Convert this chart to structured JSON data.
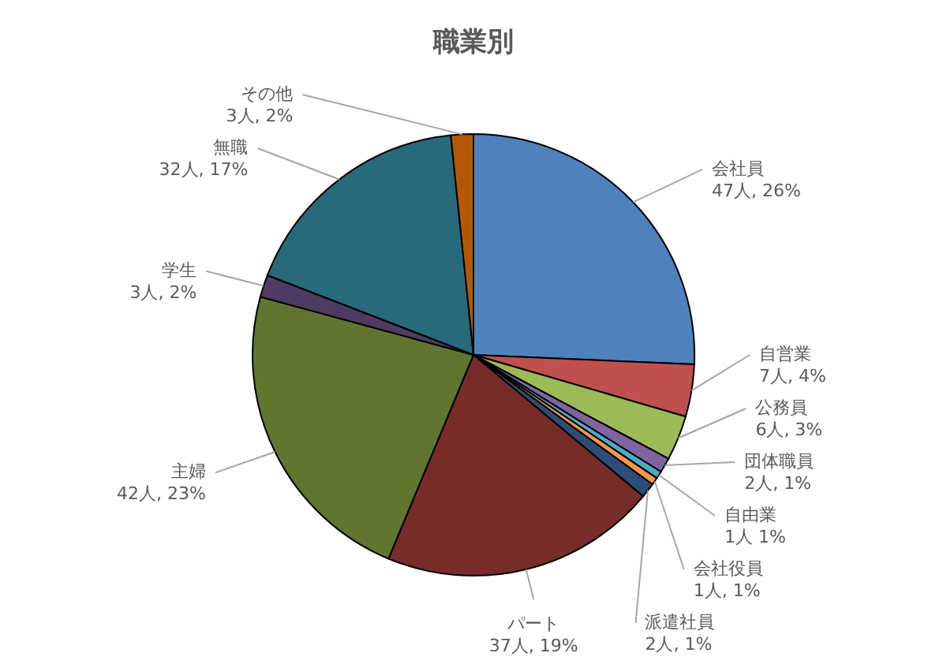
{
  "chart_data": {
    "type": "pie",
    "title": "職業別",
    "categories": [
      "会社員",
      "自営業",
      "公務員",
      "団体職員",
      "自由業",
      "会社役員",
      "派遣社員",
      "パート",
      "主婦",
      "学生",
      "無職",
      "その他"
    ],
    "values": [
      47,
      7,
      6,
      2,
      1,
      1,
      2,
      37,
      42,
      3,
      32,
      3
    ],
    "value_labels": [
      "47人, 26%",
      "7人, 4%",
      "6人, 3%",
      "2人, 1%",
      "1人 1%",
      "1人, 1%",
      "2人, 1%",
      "37人, 19%",
      "42人, 23%",
      "3人, 2%",
      "32人, 17%",
      "3人, 2%"
    ],
    "colors": [
      "#4f81bd",
      "#c0504d",
      "#9bbb59",
      "#8064a2",
      "#4bacc6",
      "#f79646",
      "#2c4d75",
      "#772c2a",
      "#5f7530",
      "#4d3b62",
      "#276a7c",
      "#b65708"
    ]
  }
}
